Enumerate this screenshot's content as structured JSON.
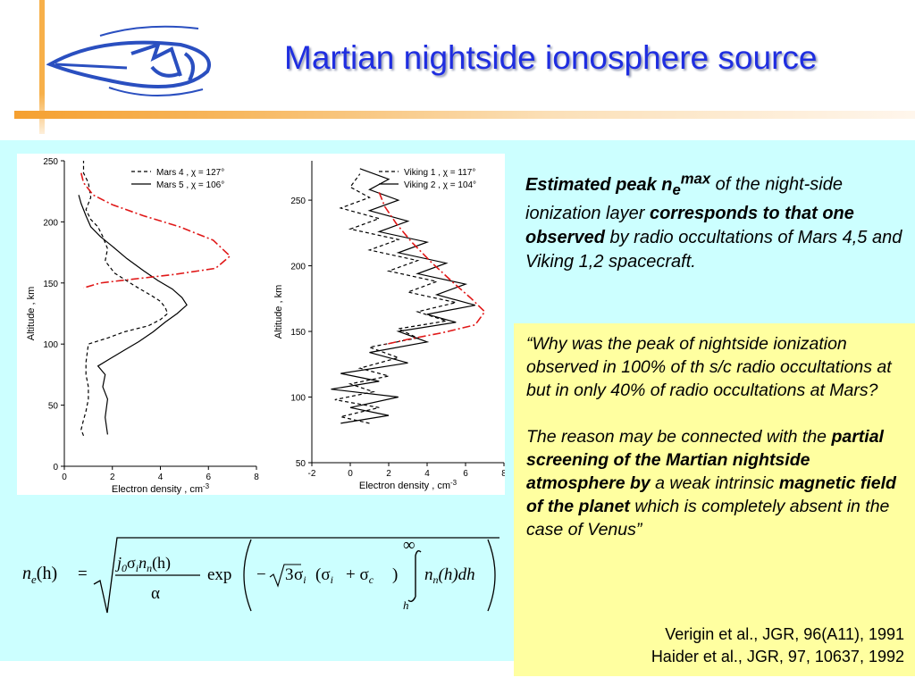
{
  "slide": {
    "title": "Martian nightside ionosphere source"
  },
  "summary": {
    "p1": "Estimated peak n",
    "p1_sub": "e",
    "p1_sup": "max",
    "p2": " of the night-side ionization layer ",
    "p3": "corresponds to that one observed",
    "p4": " by radio occultations of  Mars 4,5 and Viking 1,2 spacecraft."
  },
  "quote": {
    "q1": "“Why was the peak of nightside ionization observed in 100% of th s/c radio occultations at but in only 40% of radio occultations at Mars?",
    "q2a": "The reason may be connected with the ",
    "q2b": "partial screening of the Martian nightside atmosphere by",
    "q2c": " a weak intrinsic ",
    "q2d": "magnetic field of the planet",
    "q2e": " which is completely absent in the case of Venus”"
  },
  "references": [
    "Verigin et al., JGR, 96(A11), 1991",
    "Haider et al., JGR, 97, 10637, 1992"
  ],
  "chart_data": [
    {
      "type": "line",
      "xlabel": "Electron   density ,   cm",
      "xlabel_sup": "-3",
      "ylabel": "Altitude ,   km",
      "xlim": [
        0,
        8
      ],
      "ylim": [
        0,
        250
      ],
      "xticks": [
        "0",
        "2",
        "4",
        "6",
        "8"
      ],
      "yticks": [
        "0",
        "50",
        "100",
        "150",
        "200",
        "250"
      ],
      "legend": [
        "Mars  4 ,  χ = 127°",
        "Mars  5 ,  χ = 106°"
      ],
      "series": [
        {
          "name": "Mars  4 ,  χ = 127°",
          "style": "dashed",
          "points": [
            [
              0.8,
              25
            ],
            [
              0.7,
              30
            ],
            [
              0.8,
              38
            ],
            [
              0.9,
              45
            ],
            [
              1.0,
              55
            ],
            [
              1.0,
              65
            ],
            [
              0.9,
              75
            ],
            [
              0.9,
              85
            ],
            [
              1.0,
              100
            ],
            [
              1.8,
              105
            ],
            [
              2.5,
              110
            ],
            [
              3.5,
              115
            ],
            [
              4.0,
              120
            ],
            [
              4.3,
              125
            ],
            [
              4.2,
              130
            ],
            [
              4.0,
              135
            ],
            [
              3.6,
              140
            ],
            [
              2.9,
              148
            ],
            [
              2.1,
              158
            ],
            [
              1.7,
              168
            ],
            [
              1.8,
              178
            ],
            [
              1.6,
              188
            ],
            [
              1.4,
              196
            ],
            [
              1.1,
              202
            ],
            [
              0.9,
              210
            ],
            [
              1.1,
              220
            ],
            [
              1.0,
              232
            ],
            [
              0.8,
              240
            ],
            [
              0.8,
              250
            ]
          ]
        },
        {
          "name": "Mars  5 ,  χ = 106°",
          "style": "solid",
          "points": [
            [
              1.8,
              26
            ],
            [
              1.7,
              40
            ],
            [
              1.8,
              55
            ],
            [
              1.6,
              65
            ],
            [
              1.7,
              75
            ],
            [
              1.4,
              82
            ],
            [
              1.9,
              88
            ],
            [
              2.5,
              95
            ],
            [
              3.1,
              102
            ],
            [
              3.7,
              110
            ],
            [
              4.2,
              118
            ],
            [
              4.7,
              125
            ],
            [
              5.1,
              132
            ],
            [
              4.9,
              138
            ],
            [
              4.5,
              145
            ],
            [
              3.9,
              152
            ],
            [
              3.3,
              160
            ],
            [
              2.6,
              170
            ],
            [
              2.0,
              180
            ],
            [
              1.5,
              188
            ],
            [
              1.1,
              196
            ],
            [
              0.9,
              205
            ],
            [
              0.7,
              215
            ],
            [
              0.6,
              222
            ]
          ]
        },
        {
          "name": "",
          "style": "dashdot",
          "color": "#e01818",
          "points": [
            [
              0.7,
              240
            ],
            [
              0.8,
              232
            ],
            [
              1.2,
              222
            ],
            [
              2.0,
              214
            ],
            [
              3.3,
              205
            ],
            [
              4.8,
              196
            ],
            [
              6.2,
              185
            ],
            [
              6.9,
              172
            ],
            [
              6.3,
              162
            ],
            [
              4.6,
              157
            ],
            [
              2.8,
              153
            ],
            [
              1.5,
              150
            ],
            [
              0.8,
              146
            ]
          ]
        }
      ]
    },
    {
      "type": "line",
      "xlabel": "Electron   density ,   cm",
      "xlabel_sup": "-3",
      "ylabel": "Altitude ,   km",
      "xlim": [
        -2,
        8
      ],
      "ylim": [
        50,
        280
      ],
      "xticks": [
        "-2",
        "0",
        "2",
        "4",
        "6",
        "8"
      ],
      "yticks": [
        "50",
        "100",
        "150",
        "200",
        "250"
      ],
      "legend": [
        "Viking  1 ,  χ = 117°",
        "Viking  2 ,  χ = 104°"
      ],
      "series": [
        {
          "name": "Viking  1 ,  χ = 117°",
          "style": "dashed",
          "points": [
            [
              1.0,
              80
            ],
            [
              -0.5,
              85
            ],
            [
              1.5,
              92
            ],
            [
              -0.8,
              98
            ],
            [
              1.2,
              104
            ],
            [
              0.0,
              110
            ],
            [
              2.0,
              116
            ],
            [
              0.5,
              122
            ],
            [
              2.5,
              130
            ],
            [
              1.0,
              138
            ],
            [
              3.5,
              145
            ],
            [
              2.5,
              152
            ],
            [
              5.0,
              158
            ],
            [
              3.5,
              165
            ],
            [
              5.5,
              172
            ],
            [
              3.0,
              180
            ],
            [
              4.5,
              188
            ],
            [
              2.0,
              196
            ],
            [
              3.5,
              204
            ],
            [
              1.0,
              212
            ],
            [
              2.5,
              220
            ],
            [
              0.0,
              228
            ],
            [
              1.5,
              236
            ],
            [
              -0.5,
              244
            ],
            [
              1.0,
              252
            ],
            [
              0.0,
              260
            ],
            [
              0.5,
              270
            ]
          ]
        },
        {
          "name": "Viking  2 ,  χ = 104°",
          "style": "solid",
          "points": [
            [
              -0.5,
              80
            ],
            [
              2.0,
              86
            ],
            [
              0.0,
              92
            ],
            [
              2.5,
              100
            ],
            [
              -1.0,
              106
            ],
            [
              1.5,
              112
            ],
            [
              -0.5,
              118
            ],
            [
              3.0,
              126
            ],
            [
              1.0,
              134
            ],
            [
              4.0,
              142
            ],
            [
              2.5,
              150
            ],
            [
              5.5,
              157
            ],
            [
              4.0,
              163
            ],
            [
              6.5,
              170
            ],
            [
              4.5,
              178
            ],
            [
              6.0,
              186
            ],
            [
              3.5,
              194
            ],
            [
              5.0,
              202
            ],
            [
              2.5,
              210
            ],
            [
              4.0,
              218
            ],
            [
              1.5,
              226
            ],
            [
              3.0,
              234
            ],
            [
              1.0,
              242
            ],
            [
              2.5,
              250
            ],
            [
              1.0,
              258
            ],
            [
              2.0,
              266
            ],
            [
              0.5,
              274
            ]
          ]
        },
        {
          "name": "",
          "style": "dashdot",
          "color": "#e01818",
          "points": [
            [
              1.5,
              256
            ],
            [
              1.8,
              245
            ],
            [
              2.4,
              232
            ],
            [
              3.2,
              218
            ],
            [
              4.2,
              203
            ],
            [
              5.3,
              188
            ],
            [
              6.3,
              175
            ],
            [
              7.0,
              165
            ],
            [
              6.5,
              155
            ],
            [
              4.8,
              149
            ],
            [
              3.0,
              144
            ],
            [
              1.8,
              140
            ]
          ]
        }
      ]
    }
  ],
  "equation": {
    "lhs_n": "n",
    "lhs_sub": "e",
    "lhs_h": "(h)",
    "eq": "=",
    "num_j": "j",
    "num_j_sub": "0",
    "num_sigma": "σ",
    "num_sigma_sub": "i",
    "num_n": "n",
    "num_n_sub": "n",
    "num_h": "(h)",
    "den": "α",
    "exp": "exp",
    "minus": "−",
    "three": "3",
    "sig_i": "σ",
    "sig_i_sub": "i",
    "paren": "(σ",
    "paren_sub": "i",
    "plus": "+ σ",
    "plus_sub": "c",
    "close": ")",
    "upper": "∞",
    "lower": "h",
    "int_n": "n",
    "int_n_sub": "n",
    "int_rest": "(h)dh"
  }
}
